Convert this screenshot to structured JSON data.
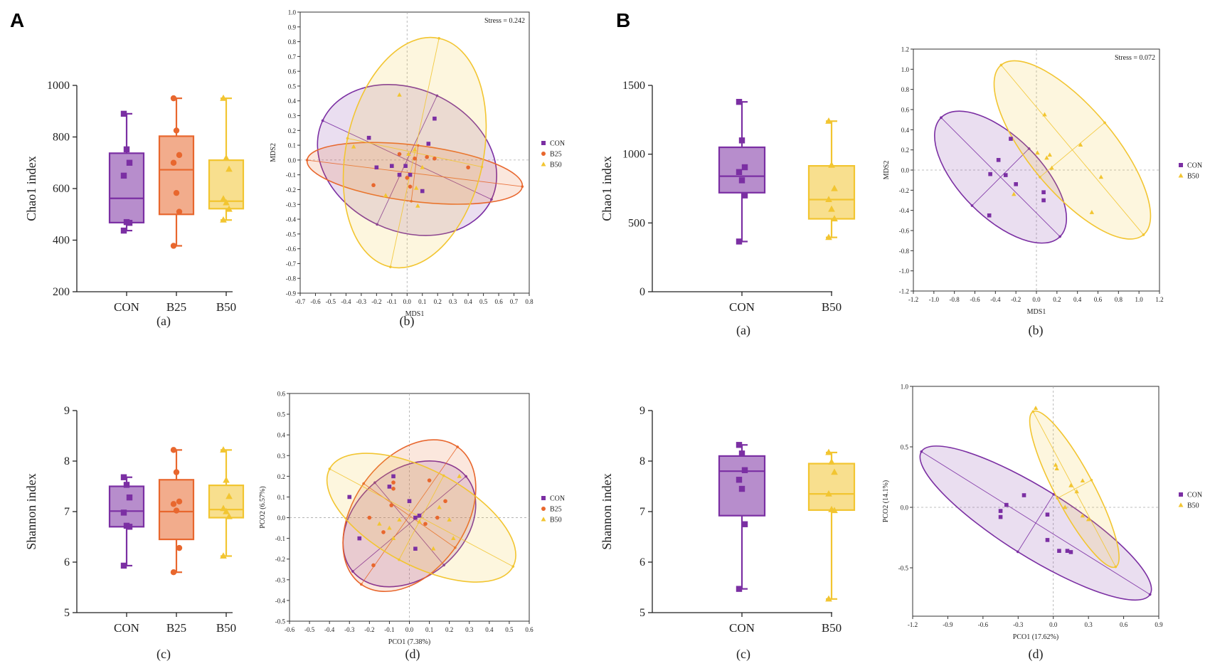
{
  "panel_labels": [
    "A",
    "B"
  ],
  "colors": {
    "CON": "#7b2fa3",
    "B25": "#e8672e",
    "B50": "#f2c531"
  },
  "markers": {
    "CON": "square",
    "B25": "circle",
    "B50": "triangle"
  },
  "chart_data": [
    {
      "id": "A-a",
      "panel": "A",
      "sublabel": "(a)",
      "type": "boxplot",
      "ylabel": "Chao1 index",
      "ylim": [
        200,
        1000
      ],
      "yticks": [
        200,
        400,
        600,
        800,
        1000
      ],
      "categories": [
        "CON",
        "B25",
        "B50"
      ],
      "boxes": [
        {
          "group": "CON",
          "min": 437,
          "q1": 468,
          "median": 562,
          "q3": 737,
          "max": 890
        },
        {
          "group": "B25",
          "min": 378,
          "q1": 500,
          "median": 673,
          "q3": 803,
          "max": 950
        },
        {
          "group": "B50",
          "min": 478,
          "q1": 522,
          "median": 551,
          "q3": 710,
          "max": 950
        }
      ],
      "points": {
        "CON": [
          890,
          752,
          700,
          650,
          470,
          467,
          437
        ],
        "B25": [
          950,
          825,
          730,
          700,
          583,
          510,
          378
        ],
        "B50": [
          950,
          718,
          675,
          560,
          545,
          520,
          478
        ]
      }
    },
    {
      "id": "A-b",
      "panel": "A",
      "sublabel": "(b)",
      "type": "scatter",
      "xlabel": "MDS1",
      "ylabel": "MDS2",
      "xlim": [
        -0.7,
        0.8
      ],
      "ylim": [
        -0.9,
        1.0
      ],
      "xticks": [
        -0.7,
        -0.6,
        -0.5,
        -0.4,
        -0.3,
        -0.2,
        -0.1,
        0,
        0.1,
        0.2,
        0.3,
        0.4,
        0.5,
        0.6,
        0.7,
        0.8
      ],
      "yticks": [
        -0.9,
        -0.8,
        -0.7,
        -0.6,
        -0.5,
        -0.4,
        -0.3,
        -0.2,
        -0.1,
        0,
        0.1,
        0.2,
        0.3,
        0.4,
        0.5,
        0.6,
        0.7,
        0.8,
        0.9,
        1.0
      ],
      "annotation": "Stress = 0.242",
      "legend": [
        "CON",
        "B25",
        "B50"
      ],
      "series": [
        {
          "name": "CON",
          "points": [
            [
              -0.25,
              0.15
            ],
            [
              -0.2,
              -0.05
            ],
            [
              -0.1,
              -0.04
            ],
            [
              -0.05,
              -0.1
            ],
            [
              -0.01,
              -0.04
            ],
            [
              0.02,
              -0.1
            ],
            [
              0.1,
              -0.21
            ],
            [
              0.14,
              0.11
            ],
            [
              0.18,
              0.28
            ]
          ]
        },
        {
          "name": "B25",
          "points": [
            [
              -0.22,
              -0.17
            ],
            [
              -0.05,
              0.04
            ],
            [
              0.0,
              -0.12
            ],
            [
              0.02,
              -0.18
            ],
            [
              0.05,
              0.01
            ],
            [
              0.13,
              0.02
            ],
            [
              0.18,
              0.01
            ],
            [
              0.4,
              -0.05
            ]
          ]
        },
        {
          "name": "B50",
          "points": [
            [
              -0.35,
              0.09
            ],
            [
              -0.14,
              -0.24
            ],
            [
              -0.05,
              0.44
            ],
            [
              0.01,
              0.04
            ],
            [
              0.05,
              0.07
            ],
            [
              0.06,
              -0.19
            ],
            [
              0.07,
              -0.31
            ],
            [
              0.1,
              -0.05
            ]
          ]
        }
      ],
      "ellipses": [
        {
          "group": "CON",
          "cx": 0.0,
          "cy": 0.0,
          "rx": 0.61,
          "ry": 0.48,
          "angle": -25
        },
        {
          "group": "B25",
          "cx": 0.05,
          "cy": -0.09,
          "rx": 0.71,
          "ry": 0.19,
          "angle": -7
        },
        {
          "group": "B50",
          "cx": 0.05,
          "cy": 0.05,
          "rx": 0.45,
          "ry": 0.79,
          "angle": -12
        }
      ]
    },
    {
      "id": "A-c",
      "panel": "A",
      "sublabel": "(c)",
      "type": "boxplot",
      "ylabel": "Shannon index",
      "ylim": [
        5,
        9
      ],
      "yticks": [
        5,
        6,
        7,
        8,
        9
      ],
      "categories": [
        "CON",
        "B25",
        "B50"
      ],
      "boxes": [
        {
          "group": "CON",
          "min": 5.93,
          "q1": 6.7,
          "median": 7.01,
          "q3": 7.5,
          "max": 7.68
        },
        {
          "group": "B25",
          "min": 5.8,
          "q1": 6.45,
          "median": 7.0,
          "q3": 7.63,
          "max": 8.22
        },
        {
          "group": "B50",
          "min": 6.12,
          "q1": 6.88,
          "median": 7.04,
          "q3": 7.52,
          "max": 8.22
        }
      ],
      "points": {
        "CON": [
          7.68,
          7.53,
          7.28,
          6.98,
          6.72,
          6.7,
          5.93
        ],
        "B25": [
          8.22,
          7.78,
          7.2,
          7.15,
          7.02,
          6.28,
          5.8
        ],
        "B50": [
          8.22,
          7.62,
          7.3,
          7.06,
          7.0,
          6.9,
          6.12
        ]
      }
    },
    {
      "id": "A-d",
      "panel": "A",
      "sublabel": "(d)",
      "type": "scatter",
      "xlabel": "PCO1 (7.38%)",
      "ylabel": "PCO2 (6.57%)",
      "xlim": [
        -0.6,
        0.6
      ],
      "ylim": [
        -0.5,
        0.6
      ],
      "xticks": [
        -0.6,
        -0.5,
        -0.4,
        -0.3,
        -0.2,
        -0.1,
        0,
        0.1,
        0.2,
        0.3,
        0.4,
        0.5,
        0.6
      ],
      "yticks": [
        -0.5,
        -0.4,
        -0.3,
        -0.2,
        -0.1,
        0,
        0.1,
        0.2,
        0.3,
        0.4,
        0.5,
        0.6
      ],
      "legend": [
        "CON",
        "B25",
        "B50"
      ],
      "series": [
        {
          "name": "CON",
          "points": [
            [
              -0.08,
              0.2
            ],
            [
              -0.3,
              0.1
            ],
            [
              -0.25,
              -0.1
            ],
            [
              0.03,
              -0.15
            ],
            [
              0.03,
              0.0
            ],
            [
              0.05,
              0.01
            ],
            [
              0.0,
              0.08
            ],
            [
              -0.1,
              0.15
            ]
          ]
        },
        {
          "name": "B25",
          "points": [
            [
              -0.08,
              0.17
            ],
            [
              -0.08,
              0.14
            ],
            [
              -0.09,
              0.06
            ],
            [
              0.1,
              0.18
            ],
            [
              -0.2,
              0.0
            ],
            [
              0.08,
              -0.03
            ],
            [
              -0.13,
              -0.07
            ],
            [
              0.14,
              0.0
            ],
            [
              0.18,
              0.08
            ],
            [
              -0.18,
              -0.23
            ]
          ]
        },
        {
          "name": "B50",
          "points": [
            [
              -0.15,
              -0.03
            ],
            [
              -0.1,
              -0.05
            ],
            [
              -0.05,
              -0.01
            ],
            [
              0.05,
              -0.02
            ],
            [
              0.15,
              0.05
            ],
            [
              0.2,
              -0.01
            ],
            [
              0.22,
              -0.1
            ],
            [
              0.12,
              -0.15
            ],
            [
              0.25,
              0.2
            ],
            [
              -0.08,
              -0.1
            ]
          ]
        }
      ],
      "ellipses": [
        {
          "group": "CON",
          "cx": 0.0,
          "cy": -0.03,
          "rx": 0.37,
          "ry": 0.26,
          "angle": 40
        },
        {
          "group": "B25",
          "cx": 0.0,
          "cy": 0.01,
          "rx": 0.42,
          "ry": 0.27,
          "angle": 55
        },
        {
          "group": "B50",
          "cx": 0.06,
          "cy": 0.0,
          "rx": 0.52,
          "ry": 0.23,
          "angle": -28
        }
      ]
    },
    {
      "id": "B-a",
      "panel": "B",
      "sublabel": "(a)",
      "type": "boxplot",
      "ylabel": "Chao1 index",
      "ylim": [
        0,
        1500
      ],
      "yticks": [
        0,
        500,
        1000,
        1500
      ],
      "categories": [
        "CON",
        "B50"
      ],
      "boxes": [
        {
          "group": "CON",
          "min": 365,
          "q1": 720,
          "median": 840,
          "q3": 1050,
          "max": 1380
        },
        {
          "group": "B50",
          "min": 395,
          "q1": 530,
          "median": 670,
          "q3": 915,
          "max": 1240
        }
      ],
      "points": {
        "CON": [
          1380,
          1100,
          905,
          870,
          810,
          700,
          365
        ],
        "B50": [
          1240,
          920,
          750,
          670,
          600,
          530,
          395
        ]
      }
    },
    {
      "id": "B-b",
      "panel": "B",
      "sublabel": "(b)",
      "type": "scatter",
      "xlabel": "MDS1",
      "ylabel": "MDS2",
      "xlim": [
        -1.2,
        1.2
      ],
      "ylim": [
        -1.2,
        1.2
      ],
      "xticks": [
        -1.2,
        -1.0,
        -0.8,
        -0.6,
        -0.4,
        -0.2,
        0.0,
        0.2,
        0.4,
        0.6,
        0.8,
        1.0,
        1.2
      ],
      "yticks": [
        -1.2,
        -1.0,
        -0.8,
        -0.6,
        -0.4,
        -0.2,
        0.0,
        0.2,
        0.4,
        0.6,
        0.8,
        1.0,
        1.2
      ],
      "annotation": "Stress = 0.072",
      "legend": [
        "CON",
        "B50"
      ],
      "series": [
        {
          "name": "CON",
          "points": [
            [
              -0.25,
              0.31
            ],
            [
              -0.37,
              0.1
            ],
            [
              -0.45,
              -0.04
            ],
            [
              -0.3,
              -0.05
            ],
            [
              -0.2,
              -0.14
            ],
            [
              0.07,
              -0.22
            ],
            [
              0.07,
              -0.3
            ],
            [
              -0.46,
              -0.45
            ]
          ]
        },
        {
          "name": "B50",
          "points": [
            [
              0.01,
              0.17
            ],
            [
              0.13,
              0.15
            ],
            [
              0.1,
              0.12
            ],
            [
              0.08,
              0.55
            ],
            [
              0.43,
              0.25
            ],
            [
              0.15,
              0.02
            ],
            [
              0.63,
              -0.07
            ],
            [
              0.54,
              -0.42
            ],
            [
              -0.22,
              -0.24
            ]
          ]
        }
      ],
      "ellipses": [
        {
          "group": "CON",
          "cx": -0.35,
          "cy": -0.07,
          "rx": 0.82,
          "ry": 0.4,
          "angle": -45
        },
        {
          "group": "B50",
          "cx": 0.35,
          "cy": 0.2,
          "rx": 1.08,
          "ry": 0.42,
          "angle": -50
        }
      ]
    },
    {
      "id": "B-c",
      "panel": "B",
      "sublabel": "(c)",
      "type": "boxplot",
      "ylabel": "Shannon index",
      "ylim": [
        5,
        9
      ],
      "yticks": [
        5,
        6,
        7,
        8,
        9
      ],
      "categories": [
        "CON",
        "B50"
      ],
      "boxes": [
        {
          "group": "CON",
          "min": 5.47,
          "q1": 6.92,
          "median": 7.8,
          "q3": 8.1,
          "max": 8.32
        },
        {
          "group": "B50",
          "min": 5.27,
          "q1": 7.03,
          "median": 7.35,
          "q3": 7.95,
          "max": 8.17
        }
      ],
      "points": {
        "CON": [
          8.32,
          8.15,
          7.82,
          7.63,
          7.45,
          6.75,
          5.47
        ],
        "B50": [
          8.17,
          7.98,
          7.78,
          7.35,
          7.04,
          7.02,
          5.27
        ]
      }
    },
    {
      "id": "B-d",
      "panel": "B",
      "sublabel": "(d)",
      "type": "scatter",
      "xlabel": "PCO1 (17.62%)",
      "ylabel": "PCO2 (14.1%)",
      "xlim": [
        -1.2,
        0.9
      ],
      "ylim": [
        -0.9,
        1.0
      ],
      "xticks": [
        -1.2,
        -0.9,
        -0.6,
        -0.3,
        0.0,
        0.3,
        0.6,
        0.9
      ],
      "yticks": [
        -0.5,
        0.0,
        0.5,
        1.0
      ],
      "legend": [
        "CON",
        "B50"
      ],
      "series": [
        {
          "name": "CON",
          "points": [
            [
              -0.25,
              0.1
            ],
            [
              -0.4,
              0.02
            ],
            [
              -0.45,
              -0.03
            ],
            [
              -0.45,
              -0.08
            ],
            [
              -0.05,
              -0.06
            ],
            [
              -0.05,
              -0.27
            ],
            [
              0.05,
              -0.36
            ],
            [
              0.15,
              -0.37
            ],
            [
              0.12,
              -0.36
            ]
          ]
        },
        {
          "name": "B50",
          "points": [
            [
              0.02,
              0.35
            ],
            [
              0.03,
              0.32
            ],
            [
              0.15,
              0.18
            ],
            [
              0.25,
              0.22
            ],
            [
              0.2,
              0.13
            ],
            [
              0.1,
              0.0
            ],
            [
              0.25,
              -0.07
            ],
            [
              0.3,
              -0.1
            ],
            [
              -0.15,
              0.82
            ]
          ]
        }
      ],
      "ellipses": [
        {
          "group": "CON",
          "cx": -0.15,
          "cy": -0.13,
          "rx": 1.15,
          "ry": 0.28,
          "angle": -32
        },
        {
          "group": "B50",
          "cx": 0.18,
          "cy": 0.15,
          "rx": 0.75,
          "ry": 0.16,
          "angle": -62
        }
      ]
    }
  ]
}
